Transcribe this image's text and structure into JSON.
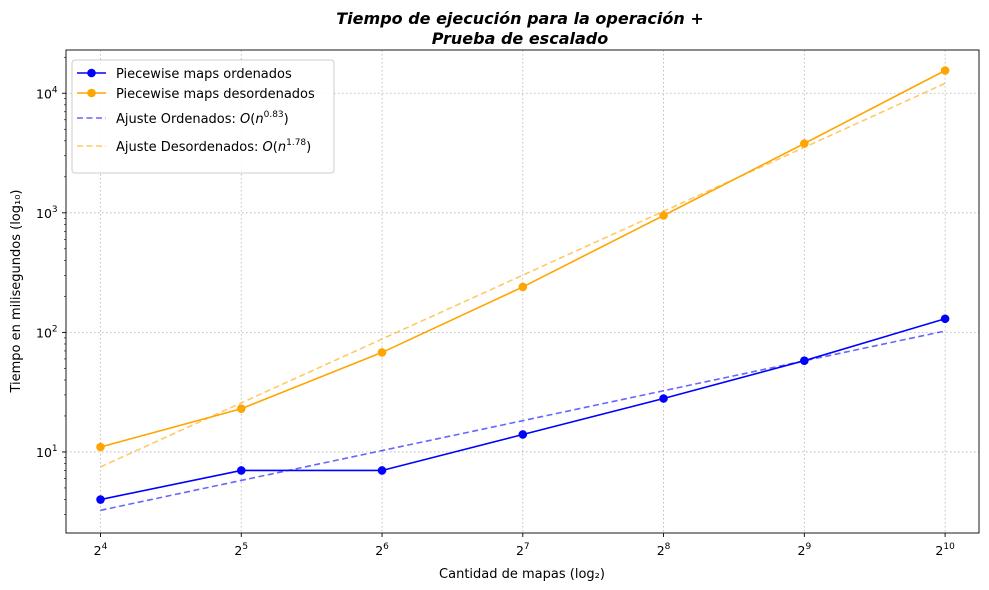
{
  "chart_data": {
    "type": "line",
    "title_line1": "Tiempo de ejecución para la operación +",
    "title_line2": "Prueba de escalado",
    "xlabel": "Cantidad de mapas (log₂)",
    "ylabel": "Tiempo en milisegundos (log₁₀)",
    "x_scale": "log2",
    "y_scale": "log10",
    "x": [
      16,
      32,
      64,
      128,
      256,
      512,
      1024
    ],
    "x_ticks": [
      16,
      32,
      64,
      128,
      256,
      512,
      1024
    ],
    "x_tick_labels": [
      {
        "base": "2",
        "exp": "4"
      },
      {
        "base": "2",
        "exp": "5"
      },
      {
        "base": "2",
        "exp": "6"
      },
      {
        "base": "2",
        "exp": "7"
      },
      {
        "base": "2",
        "exp": "8"
      },
      {
        "base": "2",
        "exp": "9"
      },
      {
        "base": "2",
        "exp": "10"
      }
    ],
    "y_ticks": [
      10,
      100,
      1000,
      10000
    ],
    "y_tick_labels": [
      {
        "base": "10",
        "exp": "1"
      },
      {
        "base": "10",
        "exp": "2"
      },
      {
        "base": "10",
        "exp": "3"
      },
      {
        "base": "10",
        "exp": "4"
      }
    ],
    "xlim": [
      13.5,
      1210
    ],
    "ylim": [
      2.1,
      23000
    ],
    "grid": true,
    "legend_position": "top-left",
    "series": [
      {
        "name": "Piecewise maps ordenados",
        "kind": "data",
        "color": "#0000ff",
        "values": [
          4,
          7,
          7,
          14,
          28,
          58,
          130
        ]
      },
      {
        "name": "Piecewise maps desordenados",
        "kind": "data",
        "color": "#ffa500",
        "values": [
          11,
          23,
          68,
          240,
          950,
          3800,
          15500
        ]
      },
      {
        "name_prefix": "Ajuste Ordenados: ",
        "name_exp": "0.83",
        "kind": "fit",
        "color": "#0000ff",
        "values": [
          3.25,
          5.78,
          10.27,
          18.27,
          32.5,
          57.8,
          102.7
        ]
      },
      {
        "name_prefix": "Ajuste Desordenados: ",
        "name_exp": "1.78",
        "kind": "fit",
        "color": "#ffa500",
        "values": [
          7.5,
          25.7,
          88.0,
          301,
          1030,
          3530,
          12100
        ]
      }
    ]
  }
}
